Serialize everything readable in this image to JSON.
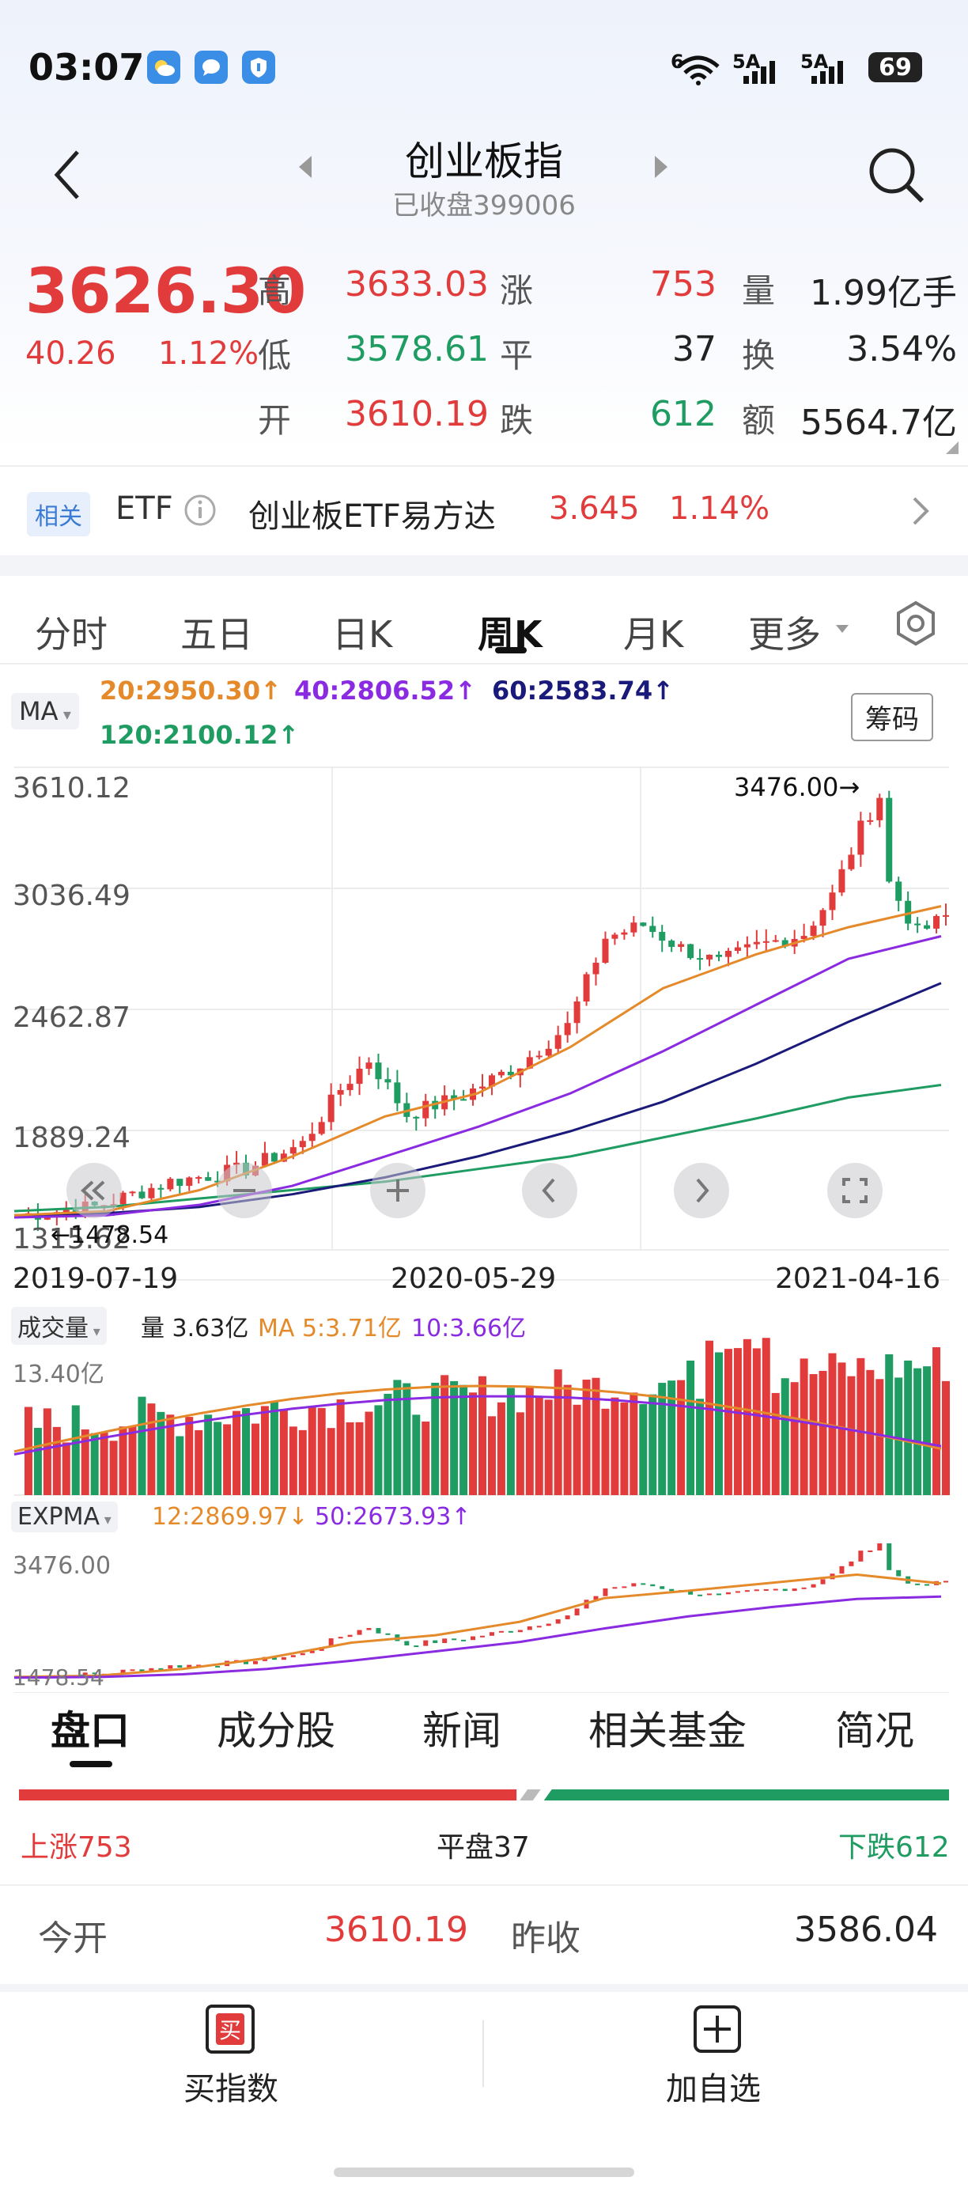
{
  "status": {
    "time": "03:07",
    "signal_1": "6",
    "signal_2": "5A",
    "signal_3": "5A",
    "battery": "69"
  },
  "header": {
    "title": "创业板指",
    "subtitle": "已收盘399006"
  },
  "quote": {
    "price": "3626.30",
    "change": "40.26",
    "change_pct": "1.12%",
    "high_label": "高",
    "high": "3633.03",
    "low_label": "低",
    "low": "3578.61",
    "open_label": "开",
    "open": "3610.19",
    "up_label": "涨",
    "up": "753",
    "flat_label": "平",
    "flat": "37",
    "down_label": "跌",
    "down": "612",
    "vol_label": "量",
    "volume": "1.99亿手",
    "turnover_label": "换",
    "turnover": "3.54%",
    "amount_label": "额",
    "amount": "5564.7亿"
  },
  "related": {
    "badge": "相关",
    "etf_label": "ETF",
    "name": "创业板ETF易方达",
    "price": "3.645",
    "pct": "1.14%"
  },
  "tabs": [
    "分时",
    "五日",
    "日K",
    "周K",
    "月K",
    "更多"
  ],
  "active_tab": "周K",
  "ma": {
    "selector": "MA",
    "ma20": "20:2950.30↑",
    "ma40": "40:2806.52↑",
    "ma60": "60:2583.74↑",
    "ma120": "120:2100.12↑",
    "chip_button": "筹码"
  },
  "axis": {
    "y_ticks": [
      "3610.12",
      "3036.49",
      "2462.87",
      "1889.24",
      "1315.62"
    ],
    "dates": [
      "2019-07-19",
      "2020-05-29",
      "2021-04-16"
    ],
    "high_marker": "3476.00→",
    "low_marker": "←1478.54"
  },
  "volume": {
    "selector": "成交量",
    "current": "量 3.63亿",
    "ma5": "MA 5:3.71亿",
    "ma10": "10:3.66亿",
    "max": "13.40亿"
  },
  "expma": {
    "selector": "EXPMA",
    "e12": "12:2869.97↓",
    "e50": "50:2673.93↑",
    "top": "3476.00",
    "bottom": "1478.54"
  },
  "bottom_tabs": [
    "盘口",
    "成分股",
    "新闻",
    "相关基金",
    "简况"
  ],
  "active_bottom_tab": "盘口",
  "breadth": {
    "up": "上涨753",
    "flat": "平盘37",
    "down": "下跌612",
    "up_ratio": 0.535,
    "flat_ratio": 0.026
  },
  "open_close": {
    "open_label": "今开",
    "open": "3610.19",
    "prev_label": "昨收",
    "prev": "3586.04"
  },
  "actions": {
    "buy_icon_text": "买",
    "buy_label": "买指数",
    "add_label": "加自选"
  },
  "colors": {
    "up": "#e23b3b",
    "down": "#1e9c62",
    "ma20": "#e58a2b",
    "ma40": "#8a2be2",
    "ma60": "#1a1a7a",
    "ma120": "#1e9c62"
  },
  "chart_data": {
    "type": "line",
    "title": "",
    "x": [
      "2019-07-19",
      "2020-05-29",
      "2021-04-16"
    ],
    "ylim": [
      1315.62,
      3610.12
    ],
    "series": [
      {
        "name": "120:2100.12↑",
        "values": [
          1500,
          1700,
          2100
        ]
      },
      {
        "name": "60:2583.74↑",
        "values": [
          1480,
          1850,
          2584
        ]
      },
      {
        "name": "40:2806.52↑",
        "values": [
          1470,
          2000,
          2807
        ]
      },
      {
        "name": "20:2950.30↑",
        "values": [
          1480,
          2150,
          2950
        ]
      }
    ]
  }
}
